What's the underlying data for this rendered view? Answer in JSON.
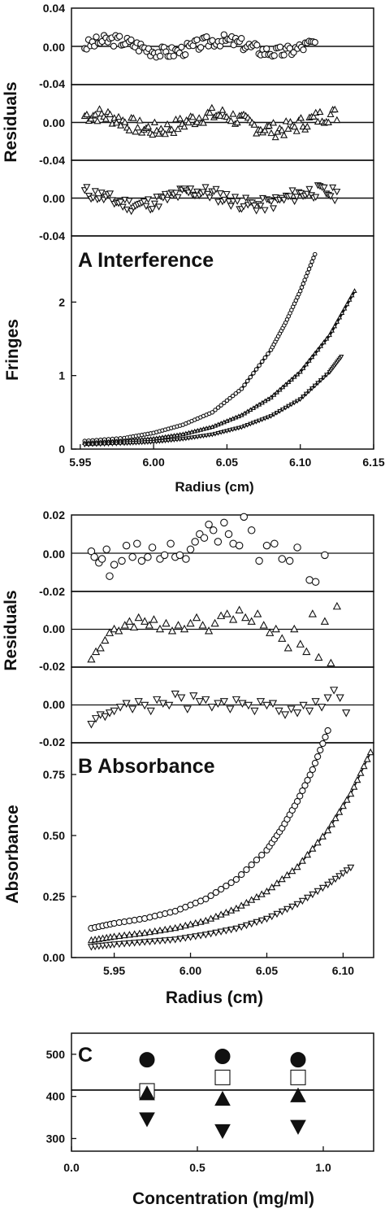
{
  "chart_data": [
    {
      "id": "A-residuals",
      "type": "scatter",
      "title": "",
      "ylabel": "Residuals",
      "xlim": [
        5.944,
        6.15
      ],
      "ylim": [
        -0.04,
        0.04
      ],
      "yticks": [
        "0.04",
        "0.00",
        "-0.04"
      ],
      "subpanels": [
        {
          "marker": "circle",
          "series_range": [
            5.953,
            6.11
          ],
          "amplitude": 0.008,
          "seed": 3
        },
        {
          "marker": "triangle-up",
          "series_range": [
            5.953,
            6.125
          ],
          "amplitude": 0.01,
          "seed": 7
        },
        {
          "marker": "triangle-down",
          "series_range": [
            5.953,
            6.125
          ],
          "amplitude": 0.009,
          "seed": 11
        }
      ],
      "y_tick_labels": {
        "top": [
          "0.04",
          "0.00",
          "-0.04"
        ],
        "mid": [
          "0.00",
          "-0.04"
        ],
        "bottom": [
          "0.00",
          "-0.04"
        ]
      }
    },
    {
      "id": "A-fit",
      "type": "line",
      "title": "A Interference",
      "xlabel": "Radius (cm)",
      "ylabel": "Fringes",
      "xlim": [
        5.944,
        6.15
      ],
      "ylim": [
        0,
        2.9
      ],
      "xticks": [
        "5.95",
        "6.00",
        "6.05",
        "6.10",
        "6.15"
      ],
      "yticks": [
        "0",
        "1",
        "2"
      ],
      "series": [
        {
          "marker": "circle",
          "x": [
            5.953,
            5.98,
            6.0,
            6.02,
            6.04,
            6.06,
            6.08,
            6.09,
            6.1,
            6.11
          ],
          "y": [
            0.11,
            0.15,
            0.22,
            0.33,
            0.5,
            0.82,
            1.35,
            1.72,
            2.15,
            2.65
          ]
        },
        {
          "marker": "triangle-up",
          "x": [
            5.953,
            5.98,
            6.0,
            6.02,
            6.04,
            6.06,
            6.08,
            6.1,
            6.12,
            6.137
          ],
          "y": [
            0.08,
            0.11,
            0.14,
            0.2,
            0.3,
            0.46,
            0.7,
            1.05,
            1.55,
            2.15
          ]
        },
        {
          "marker": "triangle-down",
          "x": [
            5.953,
            5.98,
            6.0,
            6.02,
            6.04,
            6.06,
            6.08,
            6.1,
            6.12,
            6.128
          ],
          "y": [
            0.06,
            0.08,
            0.1,
            0.14,
            0.2,
            0.3,
            0.45,
            0.68,
            1.05,
            1.26
          ]
        }
      ]
    },
    {
      "id": "B-residuals",
      "type": "scatter",
      "ylabel": "Residuals",
      "xlim": [
        5.922,
        6.12
      ],
      "ylim": [
        -0.02,
        0.02
      ],
      "subpanels": [
        {
          "marker": "circle",
          "x": [
            5.935,
            5.937,
            5.94,
            5.942,
            5.945,
            5.947,
            5.95,
            5.955,
            5.958,
            5.962,
            5.965,
            5.968,
            5.972,
            5.975,
            5.98,
            5.983,
            5.987,
            5.99,
            5.993,
            5.997,
            6.0,
            6.003,
            6.006,
            6.009,
            6.012,
            6.015,
            6.018,
            6.022,
            6.025,
            6.028,
            6.032,
            6.035,
            6.04,
            6.045,
            6.05,
            6.055,
            6.06,
            6.065,
            6.07,
            6.078,
            6.082,
            6.088
          ],
          "y": [
            0.001,
            -0.002,
            -0.005,
            -0.003,
            0.002,
            -0.012,
            -0.006,
            -0.004,
            0.004,
            -0.002,
            0.005,
            -0.004,
            -0.002,
            0.003,
            -0.003,
            -0.001,
            0.005,
            -0.002,
            -0.001,
            -0.003,
            0.002,
            0.006,
            0.01,
            0.008,
            0.015,
            0.012,
            0.006,
            0.016,
            0.01,
            0.005,
            0.004,
            0.019,
            0.012,
            -0.004,
            0.004,
            0.005,
            -0.003,
            -0.004,
            0.003,
            -0.014,
            -0.015,
            -0.001
          ]
        },
        {
          "marker": "triangle-up",
          "x": [
            5.935,
            5.938,
            5.941,
            5.944,
            5.947,
            5.95,
            5.953,
            5.957,
            5.96,
            5.963,
            5.966,
            5.97,
            5.973,
            5.976,
            5.98,
            5.984,
            5.988,
            5.992,
            5.996,
            6.0,
            6.004,
            6.008,
            6.012,
            6.016,
            6.02,
            6.024,
            6.028,
            6.032,
            6.036,
            6.04,
            6.044,
            6.048,
            6.052,
            6.056,
            6.06,
            6.064,
            6.068,
            6.072,
            6.076,
            6.08,
            6.084,
            6.088,
            6.092,
            6.096
          ],
          "y": [
            -0.016,
            -0.012,
            -0.01,
            -0.006,
            -0.002,
            0.0,
            -0.001,
            0.002,
            0.004,
            0.001,
            0.006,
            0.004,
            0.002,
            0.005,
            0.0,
            0.003,
            -0.001,
            0.002,
            0.0,
            0.003,
            0.006,
            0.002,
            -0.001,
            0.003,
            0.007,
            0.008,
            0.005,
            0.01,
            0.006,
            0.004,
            0.008,
            0.002,
            -0.002,
            0.0,
            -0.005,
            -0.01,
            0.0,
            -0.008,
            -0.012,
            0.008,
            -0.015,
            0.004,
            -0.018,
            0.012
          ]
        },
        {
          "marker": "triangle-down",
          "x": [
            5.935,
            5.938,
            5.941,
            5.944,
            5.947,
            5.95,
            5.954,
            5.958,
            5.962,
            5.966,
            5.97,
            5.974,
            5.978,
            5.982,
            5.986,
            5.99,
            5.994,
            5.998,
            6.002,
            6.006,
            6.01,
            6.014,
            6.018,
            6.022,
            6.026,
            6.03,
            6.034,
            6.038,
            6.042,
            6.046,
            6.05,
            6.054,
            6.058,
            6.062,
            6.066,
            6.07,
            6.074,
            6.078,
            6.082,
            6.086,
            6.09,
            6.094,
            6.098,
            6.102
          ],
          "y": [
            -0.01,
            -0.007,
            -0.005,
            -0.006,
            -0.004,
            -0.003,
            -0.001,
            0.001,
            -0.002,
            0.002,
            0.0,
            -0.003,
            0.003,
            0.001,
            0.0,
            0.006,
            0.004,
            -0.002,
            0.005,
            0.002,
            0.003,
            -0.001,
            0.001,
            0.002,
            -0.002,
            0.003,
            0.001,
            0.0,
            -0.003,
            0.002,
            0.0,
            0.001,
            -0.003,
            -0.005,
            -0.002,
            -0.004,
            0.0,
            -0.003,
            0.002,
            -0.001,
            0.004,
            0.008,
            0.004,
            -0.004
          ]
        }
      ],
      "y_tick_labels": {
        "top": [
          "0.02",
          "0.00",
          "-0.02"
        ],
        "mid": [
          "0.00",
          "-0.02"
        ],
        "bottom": [
          "0.00",
          "-0.02"
        ]
      }
    },
    {
      "id": "B-fit",
      "type": "line",
      "title": "B Absorbance",
      "xlabel": "Radius (cm)",
      "ylabel": "Absorbance",
      "xlim": [
        5.922,
        6.12
      ],
      "ylim": [
        0,
        0.88
      ],
      "xticks": [
        "5.95",
        "6.00",
        "6.05",
        "6.10"
      ],
      "yticks": [
        "0.00",
        "0.25",
        "0.50",
        "0.75"
      ],
      "series": [
        {
          "marker": "circle",
          "x": [
            5.935,
            5.95,
            5.97,
            5.99,
            6.01,
            6.03,
            6.05,
            6.06,
            6.07,
            6.08,
            6.09
          ],
          "y": [
            0.12,
            0.14,
            0.16,
            0.19,
            0.24,
            0.32,
            0.44,
            0.53,
            0.64,
            0.77,
            0.93
          ]
        },
        {
          "marker": "triangle-up",
          "x": [
            5.935,
            5.95,
            5.97,
            5.99,
            6.01,
            6.03,
            6.05,
            6.07,
            6.09,
            6.105,
            6.118
          ],
          "y": [
            0.07,
            0.085,
            0.1,
            0.12,
            0.15,
            0.2,
            0.27,
            0.37,
            0.52,
            0.67,
            0.84
          ]
        },
        {
          "marker": "triangle-down",
          "x": [
            5.935,
            5.95,
            5.97,
            5.99,
            6.01,
            6.03,
            6.05,
            6.07,
            6.09,
            6.105
          ],
          "y": [
            0.045,
            0.055,
            0.065,
            0.075,
            0.095,
            0.12,
            0.16,
            0.22,
            0.3,
            0.37
          ]
        }
      ]
    },
    {
      "id": "C",
      "type": "scatter",
      "title": "C",
      "xlabel": "Concentration (mg/ml)",
      "ylabel": "",
      "xlim": [
        0,
        1.2
      ],
      "ylim": [
        270,
        550
      ],
      "xticks": [
        "0.0",
        "0.5",
        "1.0"
      ],
      "yticks": [
        "300",
        "400",
        "500"
      ],
      "reference_line": 415,
      "series": [
        {
          "marker": "filled-circle",
          "x": [
            0.3,
            0.6,
            0.9
          ],
          "y": [
            487,
            495,
            487
          ]
        },
        {
          "marker": "open-square",
          "x": [
            0.3,
            0.6,
            0.9
          ],
          "y": [
            413,
            445,
            445
          ]
        },
        {
          "marker": "filled-triangle-up",
          "x": [
            0.3,
            0.6,
            0.9
          ],
          "y": [
            405,
            392,
            400
          ]
        },
        {
          "marker": "filled-triangle-down",
          "x": [
            0.3,
            0.6,
            0.9
          ],
          "y": [
            348,
            320,
            330
          ]
        }
      ]
    }
  ],
  "colors": {
    "ink": "#111111",
    "marker_fill_open": "#ffffff"
  }
}
